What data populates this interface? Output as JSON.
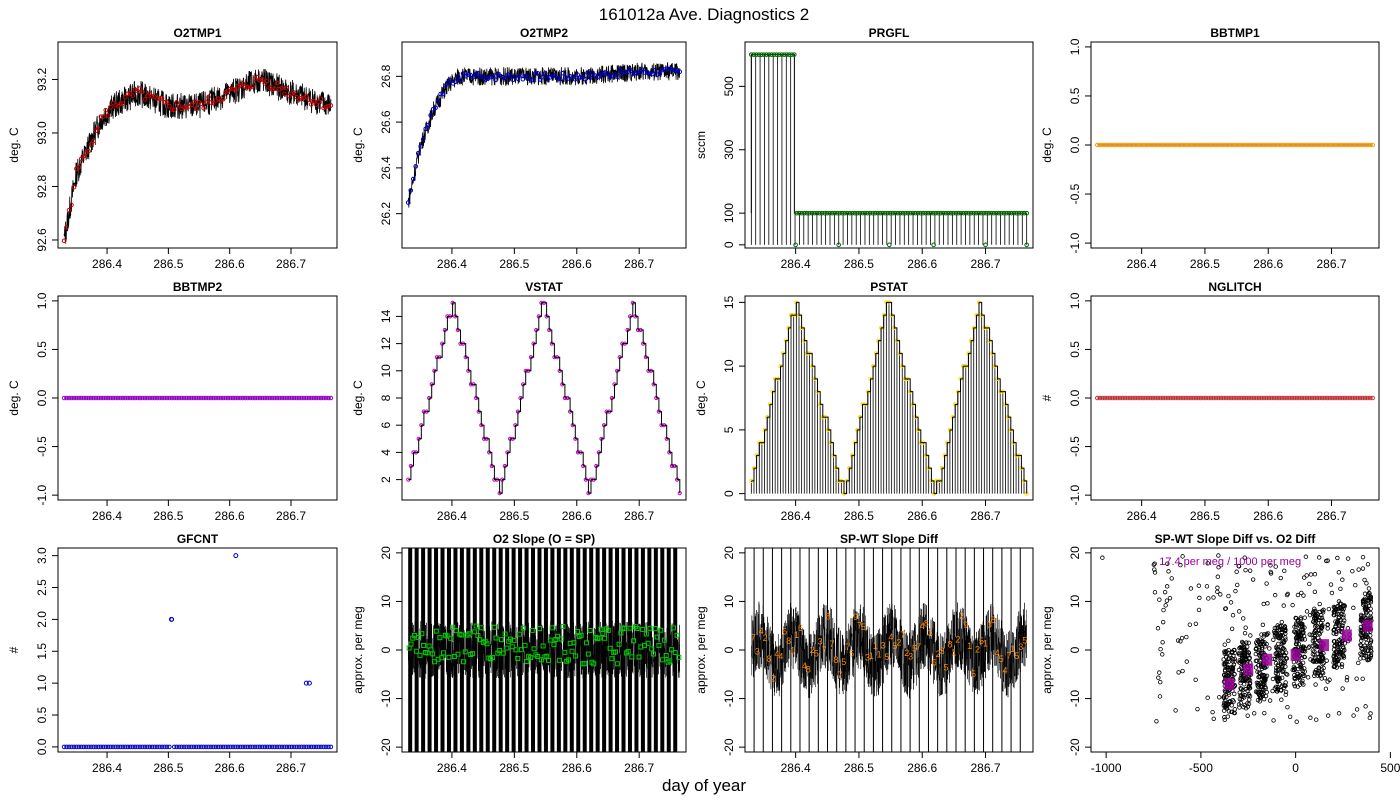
{
  "page": {
    "title": "161012a   Ave. Diagnostics 2",
    "xlabel": "day of year"
  },
  "chart_data": [
    {
      "id": "o2tmp1",
      "type": "line",
      "title": "O2TMP1",
      "ylabel": "deg. C",
      "xlim": [
        286.32,
        286.775
      ],
      "ylim": [
        92.57,
        93.34
      ],
      "xticks": [
        286.4,
        286.5,
        286.6,
        286.7
      ],
      "yticks": [
        92.6,
        92.8,
        93.0,
        93.2
      ],
      "series_color": "#000000",
      "point_color": "#cc0000",
      "points": [
        [
          286.33,
          92.6
        ],
        [
          286.35,
          92.85
        ],
        [
          286.37,
          92.95
        ],
        [
          286.39,
          93.05
        ],
        [
          286.41,
          93.1
        ],
        [
          286.45,
          93.15
        ],
        [
          286.5,
          93.1
        ],
        [
          286.55,
          93.1
        ],
        [
          286.6,
          93.15
        ],
        [
          286.65,
          93.2
        ],
        [
          286.7,
          93.15
        ],
        [
          286.765,
          93.1
        ]
      ]
    },
    {
      "id": "o2tmp2",
      "type": "line",
      "title": "O2TMP2",
      "ylabel": "deg. C",
      "xlim": [
        286.32,
        286.775
      ],
      "ylim": [
        26.05,
        26.95
      ],
      "xticks": [
        286.4,
        286.5,
        286.6,
        286.7
      ],
      "yticks": [
        26.2,
        26.4,
        26.6,
        26.8
      ],
      "series_color": "#000000",
      "point_color": "#0000cc",
      "points": [
        [
          286.33,
          26.25
        ],
        [
          286.35,
          26.5
        ],
        [
          286.37,
          26.65
        ],
        [
          286.39,
          26.75
        ],
        [
          286.41,
          26.8
        ],
        [
          286.5,
          26.8
        ],
        [
          286.6,
          26.8
        ],
        [
          286.7,
          26.82
        ],
        [
          286.765,
          26.82
        ]
      ]
    },
    {
      "id": "prgfl",
      "type": "line",
      "title": "PRGFL",
      "ylabel": "sccm",
      "xlim": [
        286.32,
        286.775
      ],
      "ylim": [
        -10,
        640
      ],
      "xticks": [
        286.4,
        286.5,
        286.6,
        286.7
      ],
      "yticks": [
        0,
        100,
        300,
        500
      ],
      "series_color": "#000000",
      "point_color": "#006600",
      "points": [
        [
          286.33,
          600
        ],
        [
          286.398,
          600
        ],
        [
          286.4,
          100
        ],
        [
          286.765,
          100
        ]
      ]
    },
    {
      "id": "bbtmp1",
      "type": "line",
      "title": "BBTMP1",
      "ylabel": "deg. C",
      "xlim": [
        286.32,
        286.775
      ],
      "ylim": [
        -1.05,
        1.05
      ],
      "xticks": [
        286.4,
        286.5,
        286.6,
        286.7
      ],
      "yticks": [
        -1.0,
        -0.5,
        0.0,
        0.5,
        1.0
      ],
      "series_color": "#000000",
      "point_color": "#ff9900",
      "points": [
        [
          286.33,
          0
        ],
        [
          286.765,
          0
        ]
      ]
    },
    {
      "id": "bbtmp2",
      "type": "line",
      "title": "BBTMP2",
      "ylabel": "deg. C",
      "xlim": [
        286.32,
        286.775
      ],
      "ylim": [
        -1.05,
        1.05
      ],
      "xticks": [
        286.4,
        286.5,
        286.6,
        286.7
      ],
      "yticks": [
        -1.0,
        -0.5,
        0.0,
        0.5,
        1.0
      ],
      "series_color": "#000000",
      "point_color": "#9900cc",
      "points": [
        [
          286.33,
          0
        ],
        [
          286.765,
          0
        ]
      ]
    },
    {
      "id": "vstat",
      "type": "line",
      "title": "VSTAT",
      "ylabel": "deg. C",
      "xlim": [
        286.32,
        286.775
      ],
      "ylim": [
        0.5,
        15.5
      ],
      "xticks": [
        286.4,
        286.5,
        286.6,
        286.7
      ],
      "yticks": [
        2,
        4,
        6,
        8,
        10,
        12,
        14
      ],
      "series_color": "#000000",
      "point_color": "#cc00cc",
      "points": [
        [
          286.33,
          2
        ],
        [
          286.4,
          15
        ],
        [
          286.475,
          1
        ],
        [
          286.545,
          15
        ],
        [
          286.62,
          1
        ],
        [
          286.69,
          15
        ],
        [
          286.765,
          1
        ]
      ]
    },
    {
      "id": "pstat",
      "type": "line",
      "title": "PSTAT",
      "ylabel": "deg. C",
      "xlim": [
        286.32,
        286.775
      ],
      "ylim": [
        -0.5,
        15.5
      ],
      "xticks": [
        286.4,
        286.5,
        286.6,
        286.7
      ],
      "yticks": [
        0,
        5,
        10,
        15
      ],
      "series_color": "#000000",
      "point_color": "#ffdd00",
      "points": [
        [
          286.33,
          1
        ],
        [
          286.4,
          15
        ],
        [
          286.475,
          0
        ],
        [
          286.545,
          15
        ],
        [
          286.62,
          0
        ],
        [
          286.69,
          15
        ],
        [
          286.765,
          0
        ]
      ]
    },
    {
      "id": "nglitch",
      "type": "line",
      "title": "NGLITCH",
      "ylabel": "#",
      "xlim": [
        286.32,
        286.775
      ],
      "ylim": [
        -1.05,
        1.05
      ],
      "xticks": [
        286.4,
        286.5,
        286.6,
        286.7
      ],
      "yticks": [
        -1.0,
        -0.5,
        0.0,
        0.5,
        1.0
      ],
      "series_color": "#000000",
      "point_color": "#cc3333",
      "points": [
        [
          286.33,
          0
        ],
        [
          286.765,
          0
        ]
      ]
    },
    {
      "id": "gfcnt",
      "type": "scatter",
      "title": "GFCNT",
      "ylabel": "#",
      "xlim": [
        286.32,
        286.775
      ],
      "ylim": [
        -0.08,
        3.12
      ],
      "xticks": [
        286.4,
        286.5,
        286.6,
        286.7
      ],
      "yticks": [
        0.0,
        0.5,
        1.0,
        1.5,
        2.0,
        2.5,
        3.0
      ],
      "series_color": "#0000cc",
      "point_color": "#0000cc",
      "points": [
        [
          286.33,
          0
        ],
        [
          286.5,
          0
        ],
        [
          286.505,
          2
        ],
        [
          286.61,
          3
        ],
        [
          286.725,
          1
        ],
        [
          286.73,
          1
        ],
        [
          286.765,
          0
        ]
      ]
    },
    {
      "id": "o2slope",
      "type": "line",
      "title": "O2 Slope (O = SP)",
      "ylabel": "approx. per meg",
      "xlim": [
        286.32,
        286.775
      ],
      "ylim": [
        -21,
        21
      ],
      "xticks": [
        286.4,
        286.5,
        286.6,
        286.7
      ],
      "yticks": [
        -20,
        -10,
        0,
        10,
        20
      ],
      "series_color": "#000000",
      "point_color": "#00cc00",
      "points": [
        [
          286.33,
          1
        ],
        [
          286.55,
          1
        ],
        [
          286.765,
          1
        ]
      ]
    },
    {
      "id": "spwt",
      "type": "line",
      "title": "SP-WT Slope Diff",
      "ylabel": "approx. per meg",
      "xlim": [
        286.32,
        286.775
      ],
      "ylim": [
        -21,
        21
      ],
      "xticks": [
        286.4,
        286.5,
        286.6,
        286.7
      ],
      "yticks": [
        -20,
        -10,
        0,
        10,
        20
      ],
      "series_color": "#000000",
      "point_color": "#ff8800",
      "points": [
        [
          286.33,
          0
        ],
        [
          286.55,
          0
        ],
        [
          286.765,
          0
        ]
      ]
    },
    {
      "id": "spwt_vs_o2",
      "type": "scatter",
      "title": "SP-WT Slope Diff vs. O2 Diff",
      "ylabel": "approx. per meg",
      "xlim": [
        -1080,
        440
      ],
      "ylim": [
        -21,
        21
      ],
      "xticks": [
        -1000,
        -500,
        0,
        500
      ],
      "yticks": [
        -20,
        -10,
        0,
        10,
        20
      ],
      "series_color": "#000000",
      "point_color": "#990099",
      "annotation": "17.4 per meg / 1000 per meg",
      "points": [
        [
          -350,
          -7
        ],
        [
          -250,
          -4
        ],
        [
          -150,
          -2
        ],
        [
          0,
          -1
        ],
        [
          150,
          1
        ],
        [
          270,
          3
        ],
        [
          380,
          5
        ]
      ]
    }
  ]
}
